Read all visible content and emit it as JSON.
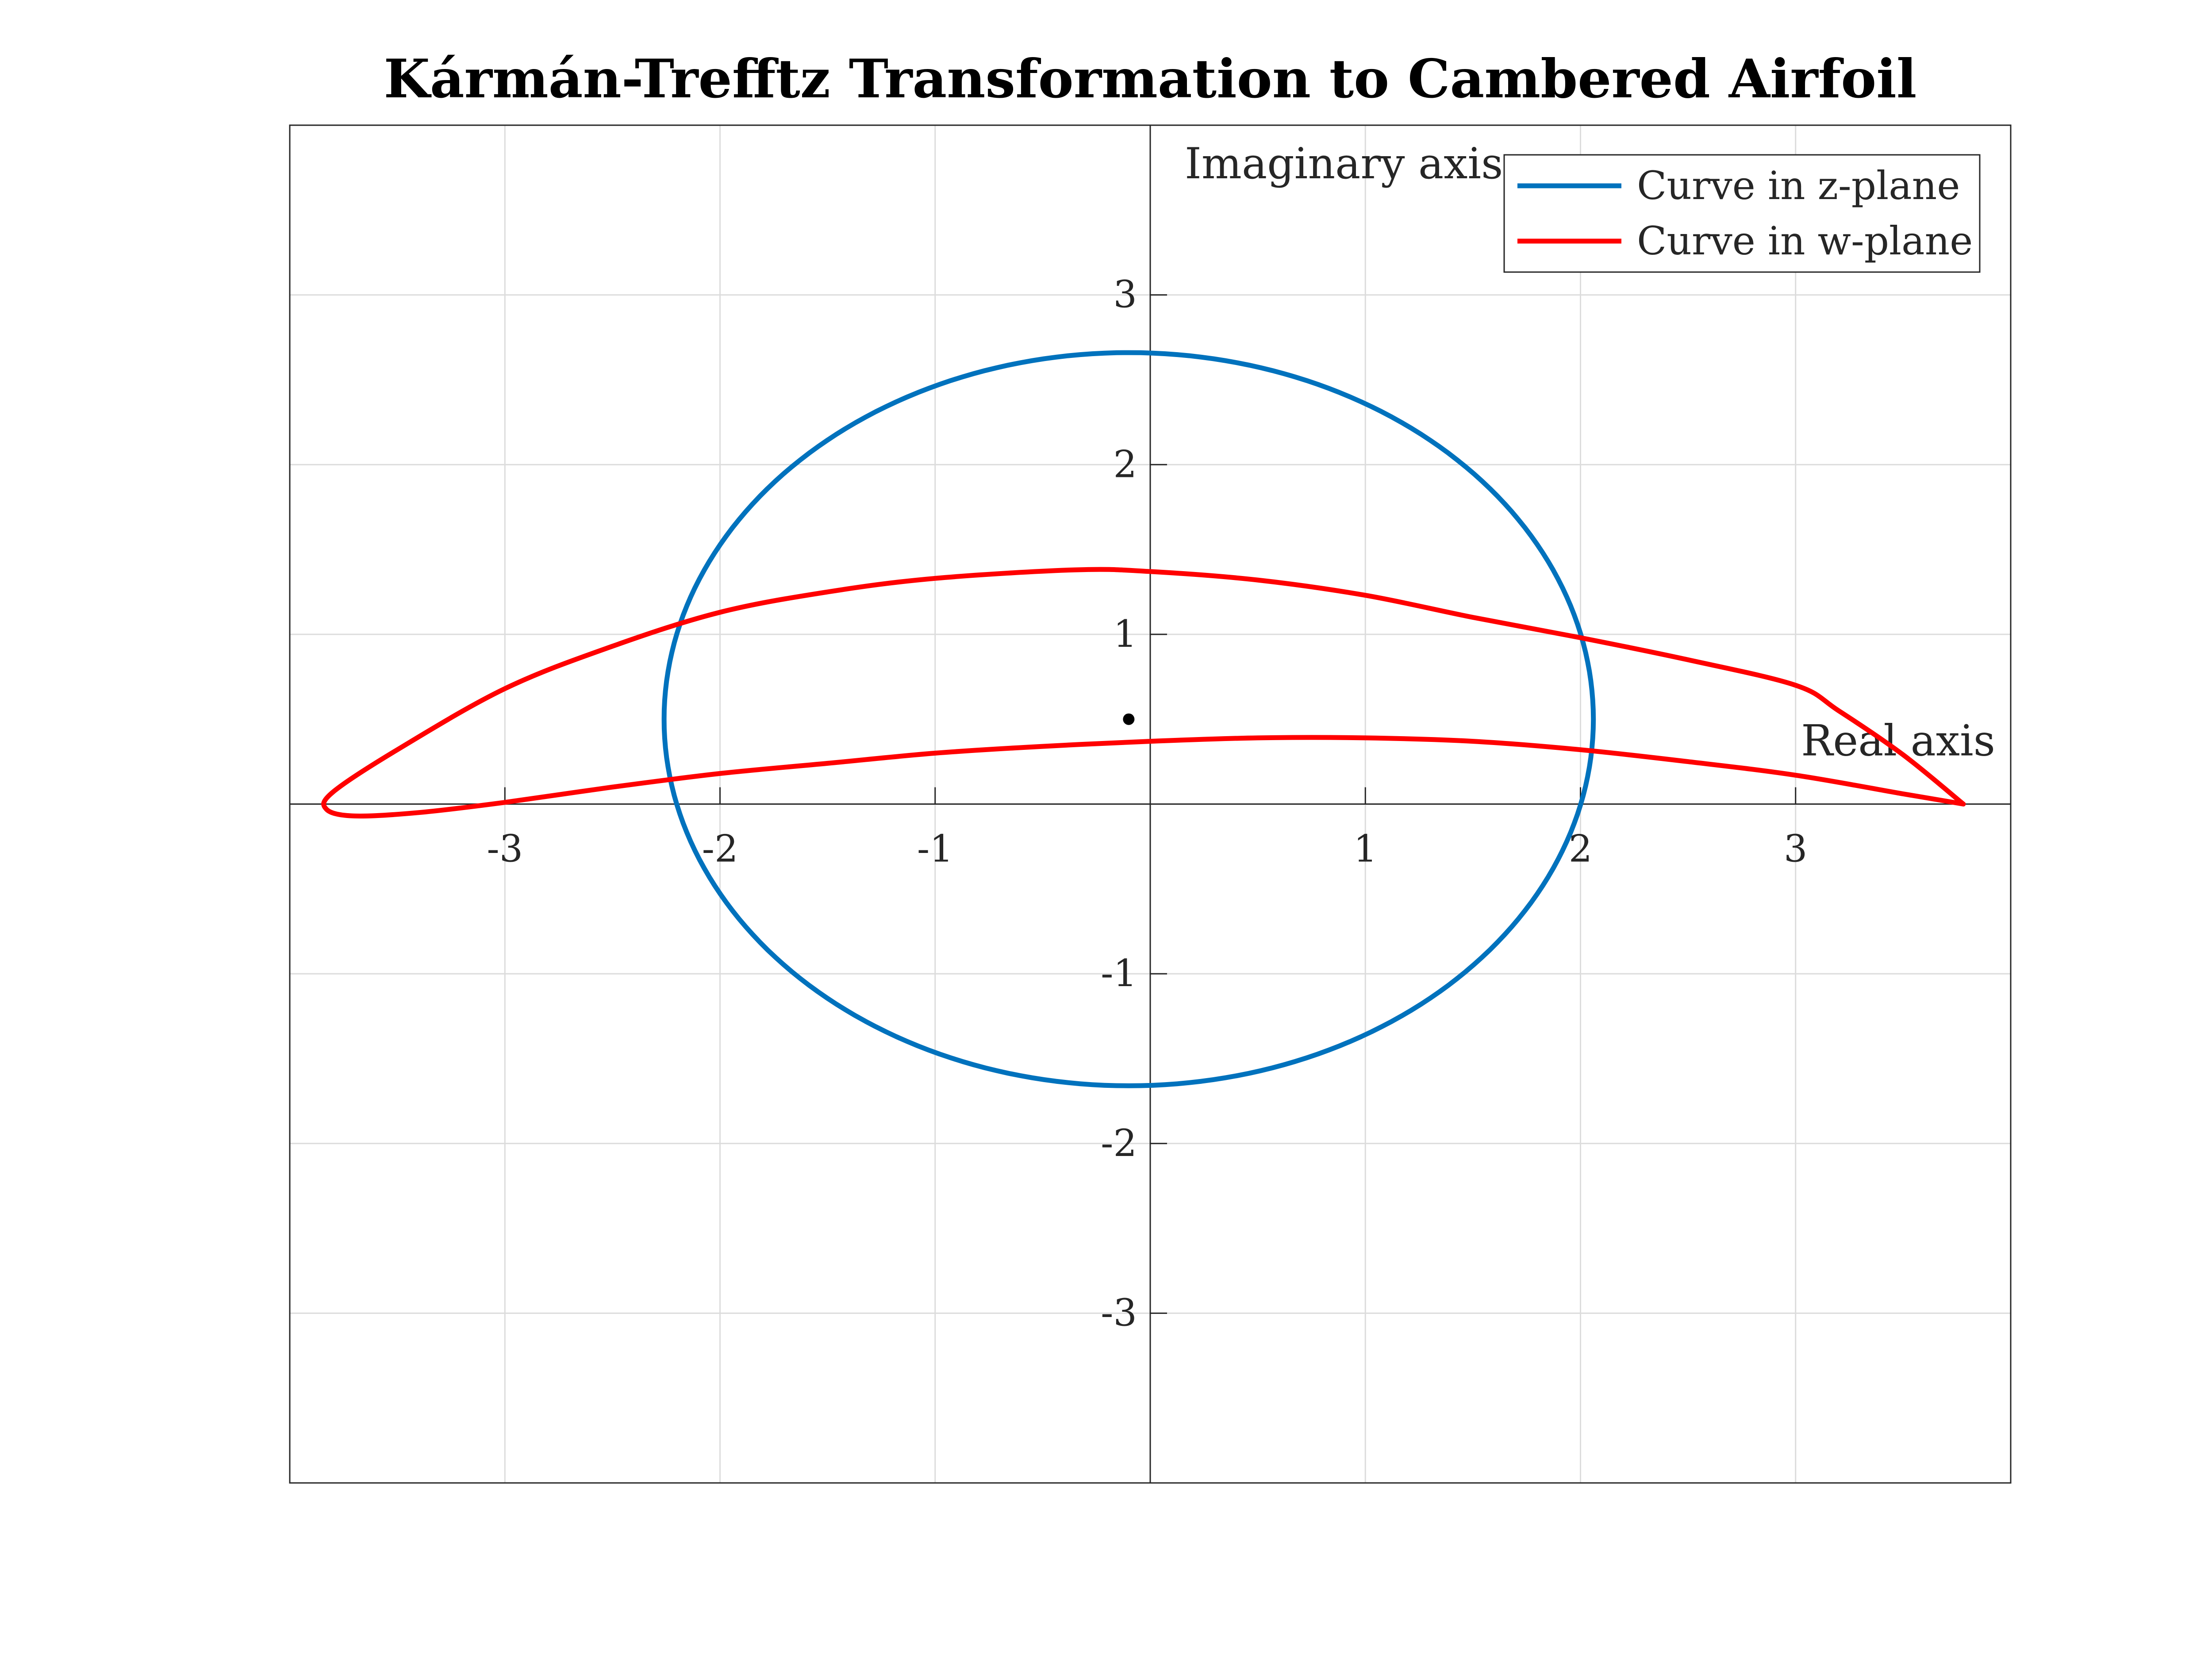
{
  "chart_data": {
    "type": "line",
    "title": "Kármán-Trefftz Transformation to Cambered Airfoil",
    "xlabel": "Real axis",
    "ylabel": "Imaginary axis",
    "xlim": [
      -4,
      4
    ],
    "ylim": [
      -4,
      4
    ],
    "grid": true,
    "axes_through_origin": true,
    "legend_placement": "top-right",
    "x_ticks": [
      -3,
      -2,
      -1,
      1,
      2,
      3
    ],
    "y_ticks": [
      -3,
      -2,
      -1,
      1,
      2,
      3
    ],
    "x_tick_labels": [
      "-3",
      "-2",
      "-1",
      "1",
      "2",
      "3"
    ],
    "y_tick_labels": [
      "-3",
      "-2",
      "-1",
      "1",
      "2",
      "3"
    ],
    "marker_point": {
      "x": -0.1,
      "y": 0.5
    },
    "series": [
      {
        "name": "Curve in z-plane",
        "legend_label": "Curve in z-plane",
        "color": "#0072BD",
        "shape": "circle",
        "center": [
          -0.1,
          0.5
        ],
        "radius": 2.16,
        "points": [
          [
            2.06,
            0.5
          ],
          [
            1.98,
            1.06
          ],
          [
            1.77,
            1.58
          ],
          [
            1.43,
            2.03
          ],
          [
            0.98,
            2.37
          ],
          [
            0.46,
            2.59
          ],
          [
            -0.1,
            2.66
          ],
          [
            -0.66,
            2.59
          ],
          [
            -1.18,
            2.37
          ],
          [
            -1.63,
            2.03
          ],
          [
            -1.97,
            1.58
          ],
          [
            -2.18,
            1.06
          ],
          [
            -2.26,
            0.5
          ],
          [
            -2.18,
            -0.06
          ],
          [
            -1.97,
            -0.58
          ],
          [
            -1.63,
            -1.03
          ],
          [
            -1.18,
            -1.37
          ],
          [
            -0.66,
            -1.59
          ],
          [
            -0.1,
            -1.66
          ],
          [
            0.46,
            -1.59
          ],
          [
            0.98,
            -1.37
          ],
          [
            1.43,
            -1.03
          ],
          [
            1.77,
            -0.58
          ],
          [
            1.98,
            -0.06
          ],
          [
            2.06,
            0.5
          ]
        ]
      },
      {
        "name": "Curve in w-plane",
        "legend_label": "Curve in w-plane",
        "color": "#FF0000",
        "shape": "airfoil",
        "points": [
          [
            3.78,
            0.0
          ],
          [
            3.5,
            0.29
          ],
          [
            3.2,
            0.55
          ],
          [
            3.0,
            0.7
          ],
          [
            2.5,
            0.85
          ],
          [
            2.0,
            0.98
          ],
          [
            1.5,
            1.1
          ],
          [
            1.0,
            1.23
          ],
          [
            0.5,
            1.32
          ],
          [
            0.0,
            1.37
          ],
          [
            -0.35,
            1.38
          ],
          [
            -1.0,
            1.33
          ],
          [
            -1.5,
            1.25
          ],
          [
            -2.0,
            1.13
          ],
          [
            -2.5,
            0.93
          ],
          [
            -3.0,
            0.68
          ],
          [
            -3.5,
            0.32
          ],
          [
            -3.8,
            0.07
          ],
          [
            -3.83,
            -0.03
          ],
          [
            -3.7,
            -0.07
          ],
          [
            -3.4,
            -0.05
          ],
          [
            -3.0,
            0.01
          ],
          [
            -2.5,
            0.1
          ],
          [
            -2.0,
            0.18
          ],
          [
            -1.5,
            0.24
          ],
          [
            -1.0,
            0.3
          ],
          [
            -0.5,
            0.34
          ],
          [
            0.0,
            0.37
          ],
          [
            0.5,
            0.39
          ],
          [
            1.0,
            0.39
          ],
          [
            1.5,
            0.37
          ],
          [
            2.0,
            0.32
          ],
          [
            2.5,
            0.25
          ],
          [
            3.0,
            0.17
          ],
          [
            3.5,
            0.06
          ],
          [
            3.78,
            0.0
          ]
        ]
      }
    ]
  }
}
